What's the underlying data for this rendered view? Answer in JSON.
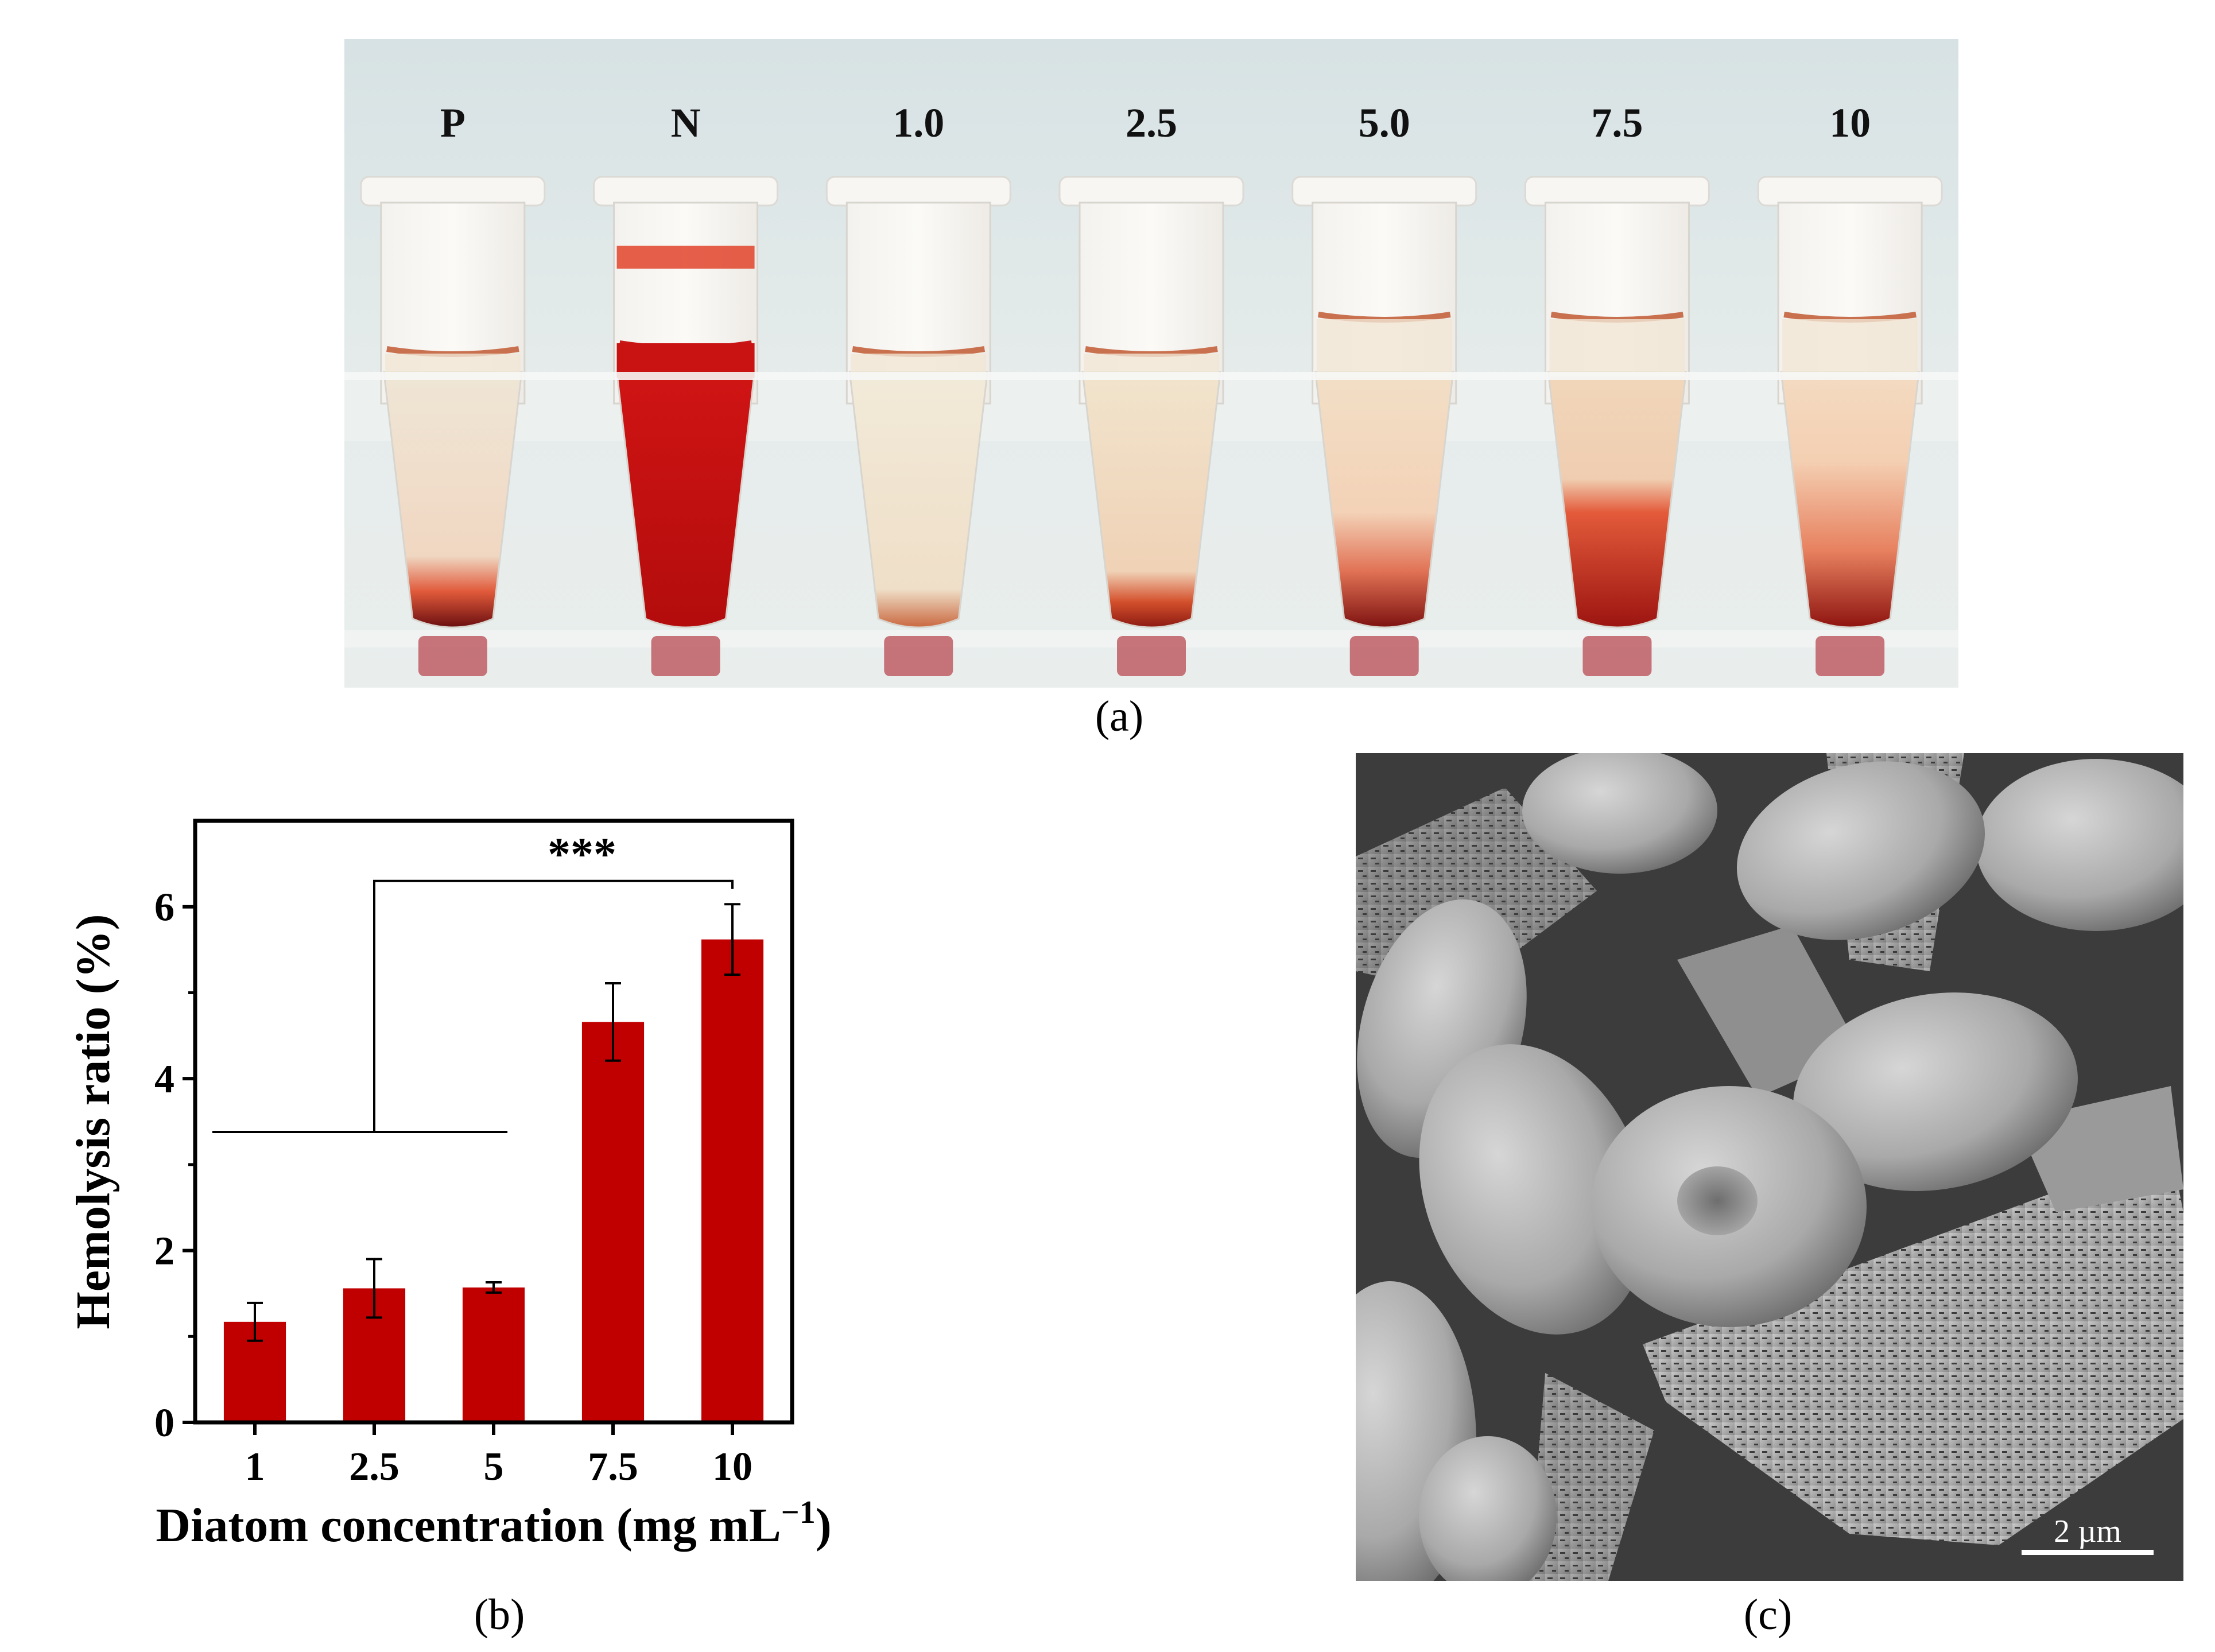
{
  "photo_panel": {
    "tube_labels": [
      "P",
      "N",
      "1.0",
      "2.5",
      "5.0",
      "7.5",
      "10"
    ],
    "caption": "(a)"
  },
  "chart_data": {
    "type": "bar",
    "categories": [
      "1",
      "2.5",
      "5",
      "7.5",
      "10"
    ],
    "values": [
      1.17,
      1.56,
      1.57,
      4.66,
      5.62
    ],
    "errors": [
      0.22,
      0.34,
      0.06,
      0.45,
      0.41
    ],
    "xlabel": "Diatom concentration (mg mL",
    "xlabel_superscript": "−1",
    "xlabel_close": ")",
    "ylabel": "Hemolysis ratio (%)",
    "ylim": [
      0,
      7
    ],
    "yticks": [
      "0",
      "2",
      "4",
      "6"
    ],
    "bar_color": "#c00000",
    "significance": {
      "label": "***",
      "bracket_y": 6.3,
      "group_line_y": 3.38
    },
    "caption": "(b)"
  },
  "sem_panel": {
    "scale_bar_label": "2 µm",
    "caption": "(c)"
  }
}
